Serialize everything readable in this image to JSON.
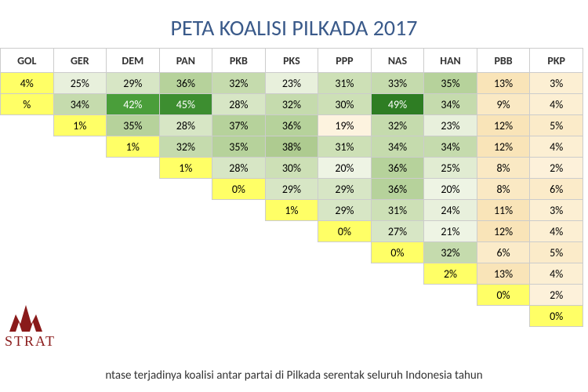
{
  "title": "PETA KOALISI PILKADA 2017",
  "logo_text": "STRAT",
  "footnote": "ntase terjadinya koalisi antar partai di Pilkada serentak seluruh Indonesia tahun",
  "matrix": {
    "type": "heatmap",
    "columns": [
      "GOL",
      "GER",
      "DEM",
      "PAN",
      "PKB",
      "PKS",
      "PPP",
      "NAS",
      "HAN",
      "PBB",
      "PKP"
    ],
    "cells": [
      {
        "r": 0,
        "c": 0,
        "v": "4%",
        "bg": "#ffff66"
      },
      {
        "r": 0,
        "c": 1,
        "v": "25%",
        "bg": "#e8f0dc"
      },
      {
        "r": 0,
        "c": 2,
        "v": "29%",
        "bg": "#d7e6c5"
      },
      {
        "r": 0,
        "c": 3,
        "v": "36%",
        "bg": "#b6d29b"
      },
      {
        "r": 0,
        "c": 4,
        "v": "32%",
        "bg": "#c5dbad"
      },
      {
        "r": 0,
        "c": 5,
        "v": "23%",
        "bg": "#e8f0dc"
      },
      {
        "r": 0,
        "c": 6,
        "v": "31%",
        "bg": "#cde0b6"
      },
      {
        "r": 0,
        "c": 7,
        "v": "33%",
        "bg": "#c5dbad"
      },
      {
        "r": 0,
        "c": 8,
        "v": "35%",
        "bg": "#b6d29b"
      },
      {
        "r": 0,
        "c": 9,
        "v": "13%",
        "bg": "#f9e4b8"
      },
      {
        "r": 0,
        "c": 10,
        "v": "3%",
        "bg": "#fcefd3"
      },
      {
        "r": 1,
        "c": 0,
        "v": "%",
        "bg": "#ffff66"
      },
      {
        "r": 1,
        "c": 1,
        "v": "34%",
        "bg": "#c5dbad"
      },
      {
        "r": 1,
        "c": 2,
        "v": "42%",
        "bg": "#4a9e3a",
        "fg": "#ffffff"
      },
      {
        "r": 1,
        "c": 3,
        "v": "45%",
        "bg": "#3d8e30",
        "fg": "#ffffff"
      },
      {
        "r": 1,
        "c": 4,
        "v": "28%",
        "bg": "#d7e6c5"
      },
      {
        "r": 1,
        "c": 5,
        "v": "32%",
        "bg": "#c5dbad"
      },
      {
        "r": 1,
        "c": 6,
        "v": "30%",
        "bg": "#cde0b6"
      },
      {
        "r": 1,
        "c": 7,
        "v": "49%",
        "bg": "#2e7d23",
        "fg": "#ffffff"
      },
      {
        "r": 1,
        "c": 8,
        "v": "34%",
        "bg": "#c5dbad"
      },
      {
        "r": 1,
        "c": 9,
        "v": "9%",
        "bg": "#fae9c4"
      },
      {
        "r": 1,
        "c": 10,
        "v": "4%",
        "bg": "#fcefd3"
      },
      {
        "r": 2,
        "c": 1,
        "v": "1%",
        "bg": "#ffff66"
      },
      {
        "r": 2,
        "c": 2,
        "v": "35%",
        "bg": "#b6d29b"
      },
      {
        "r": 2,
        "c": 3,
        "v": "28%",
        "bg": "#d7e6c5"
      },
      {
        "r": 2,
        "c": 4,
        "v": "37%",
        "bg": "#b6d29b"
      },
      {
        "r": 2,
        "c": 5,
        "v": "36%",
        "bg": "#b6d29b"
      },
      {
        "r": 2,
        "c": 6,
        "v": "19%",
        "bg": "#fdf3df"
      },
      {
        "r": 2,
        "c": 7,
        "v": "32%",
        "bg": "#c5dbad"
      },
      {
        "r": 2,
        "c": 8,
        "v": "23%",
        "bg": "#e8f0dc"
      },
      {
        "r": 2,
        "c": 9,
        "v": "12%",
        "bg": "#f9e4b8"
      },
      {
        "r": 2,
        "c": 10,
        "v": "5%",
        "bg": "#fbebc9"
      },
      {
        "r": 3,
        "c": 2,
        "v": "1%",
        "bg": "#ffff66"
      },
      {
        "r": 3,
        "c": 3,
        "v": "32%",
        "bg": "#c5dbad"
      },
      {
        "r": 3,
        "c": 4,
        "v": "35%",
        "bg": "#b6d29b"
      },
      {
        "r": 3,
        "c": 5,
        "v": "38%",
        "bg": "#aecb90"
      },
      {
        "r": 3,
        "c": 6,
        "v": "31%",
        "bg": "#cde0b6"
      },
      {
        "r": 3,
        "c": 7,
        "v": "34%",
        "bg": "#c5dbad"
      },
      {
        "r": 3,
        "c": 8,
        "v": "34%",
        "bg": "#c5dbad"
      },
      {
        "r": 3,
        "c": 9,
        "v": "12%",
        "bg": "#f9e4b8"
      },
      {
        "r": 3,
        "c": 10,
        "v": "4%",
        "bg": "#fcefd3"
      },
      {
        "r": 4,
        "c": 3,
        "v": "1%",
        "bg": "#ffff66"
      },
      {
        "r": 4,
        "c": 4,
        "v": "28%",
        "bg": "#d7e6c5"
      },
      {
        "r": 4,
        "c": 5,
        "v": "30%",
        "bg": "#cde0b6"
      },
      {
        "r": 4,
        "c": 6,
        "v": "20%",
        "bg": "#eef4e4"
      },
      {
        "r": 4,
        "c": 7,
        "v": "36%",
        "bg": "#b6d29b"
      },
      {
        "r": 4,
        "c": 8,
        "v": "25%",
        "bg": "#e1ecd2"
      },
      {
        "r": 4,
        "c": 9,
        "v": "8%",
        "bg": "#fae9c4"
      },
      {
        "r": 4,
        "c": 10,
        "v": "2%",
        "bg": "#fdf1da"
      },
      {
        "r": 5,
        "c": 4,
        "v": "0%",
        "bg": "#ffff66"
      },
      {
        "r": 5,
        "c": 5,
        "v": "29%",
        "bg": "#d7e6c5"
      },
      {
        "r": 5,
        "c": 6,
        "v": "29%",
        "bg": "#d7e6c5"
      },
      {
        "r": 5,
        "c": 7,
        "v": "36%",
        "bg": "#b6d29b"
      },
      {
        "r": 5,
        "c": 8,
        "v": "20%",
        "bg": "#eef4e4"
      },
      {
        "r": 5,
        "c": 9,
        "v": "8%",
        "bg": "#fae9c4"
      },
      {
        "r": 5,
        "c": 10,
        "v": "6%",
        "bg": "#fbebc9"
      },
      {
        "r": 6,
        "c": 5,
        "v": "1%",
        "bg": "#ffff66"
      },
      {
        "r": 6,
        "c": 6,
        "v": "29%",
        "bg": "#d7e6c5"
      },
      {
        "r": 6,
        "c": 7,
        "v": "31%",
        "bg": "#cde0b6"
      },
      {
        "r": 6,
        "c": 8,
        "v": "24%",
        "bg": "#e8f0dc"
      },
      {
        "r": 6,
        "c": 9,
        "v": "11%",
        "bg": "#f9e4b8"
      },
      {
        "r": 6,
        "c": 10,
        "v": "3%",
        "bg": "#fcefd3"
      },
      {
        "r": 7,
        "c": 6,
        "v": "0%",
        "bg": "#ffff66"
      },
      {
        "r": 7,
        "c": 7,
        "v": "27%",
        "bg": "#d7e6c5"
      },
      {
        "r": 7,
        "c": 8,
        "v": "21%",
        "bg": "#eef4e4"
      },
      {
        "r": 7,
        "c": 9,
        "v": "12%",
        "bg": "#f9e4b8"
      },
      {
        "r": 7,
        "c": 10,
        "v": "4%",
        "bg": "#fcefd3"
      },
      {
        "r": 8,
        "c": 7,
        "v": "0%",
        "bg": "#ffff66"
      },
      {
        "r": 8,
        "c": 8,
        "v": "32%",
        "bg": "#c5dbad"
      },
      {
        "r": 8,
        "c": 9,
        "v": "6%",
        "bg": "#fbebc9"
      },
      {
        "r": 8,
        "c": 10,
        "v": "5%",
        "bg": "#fbebc9"
      },
      {
        "r": 9,
        "c": 8,
        "v": "2%",
        "bg": "#ffff66"
      },
      {
        "r": 9,
        "c": 9,
        "v": "13%",
        "bg": "#f9e4b8"
      },
      {
        "r": 9,
        "c": 10,
        "v": "4%",
        "bg": "#fcefd3"
      },
      {
        "r": 10,
        "c": 9,
        "v": "0%",
        "bg": "#ffff66"
      },
      {
        "r": 10,
        "c": 10,
        "v": "2%",
        "bg": "#fdf1da"
      },
      {
        "r": 11,
        "c": 10,
        "v": "0%",
        "bg": "#ffff66"
      }
    ],
    "num_rows": 12,
    "num_cols": 11,
    "header_fontsize": 14,
    "cell_fontsize": 14,
    "border_color": "#cccccc",
    "diagonal_color": "#ffff66",
    "green_scale": [
      "#eef4e4",
      "#e8f0dc",
      "#e1ecd2",
      "#d7e6c5",
      "#cde0b6",
      "#c5dbad",
      "#b6d29b",
      "#aecb90",
      "#4a9e3a",
      "#3d8e30",
      "#2e7d23"
    ],
    "orange_scale": [
      "#fdf3df",
      "#fdf1da",
      "#fcefd3",
      "#fbebc9",
      "#fae9c4",
      "#f9e4b8"
    ]
  }
}
